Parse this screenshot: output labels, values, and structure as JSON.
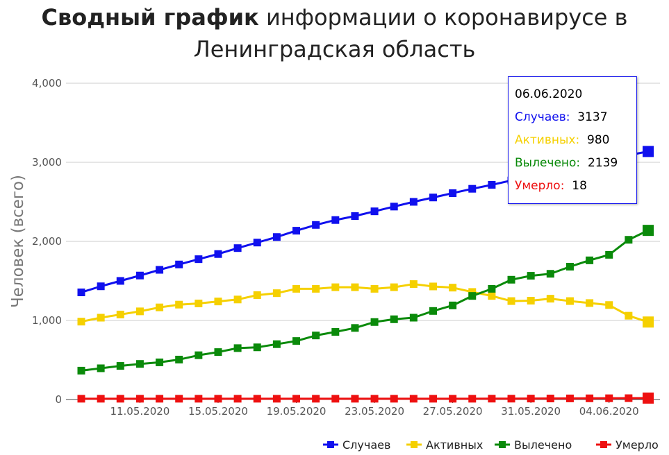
{
  "title": {
    "bold": "Сводный график",
    "rest": "информации о коронавирусе в Ленинградская область"
  },
  "chart_data": {
    "type": "line",
    "ylabel": "Человек (всего)",
    "ylim": [
      0,
      4000
    ],
    "yticks": [
      "0",
      "1,000",
      "2,000",
      "3,000",
      "4,000"
    ],
    "ytick_values": [
      0,
      1000,
      2000,
      3000,
      4000
    ],
    "x": [
      "2020-05-08",
      "2020-05-09",
      "2020-05-10",
      "2020-05-11",
      "2020-05-12",
      "2020-05-13",
      "2020-05-14",
      "2020-05-15",
      "2020-05-16",
      "2020-05-17",
      "2020-05-18",
      "2020-05-19",
      "2020-05-20",
      "2020-05-21",
      "2020-05-22",
      "2020-05-23",
      "2020-05-24",
      "2020-05-25",
      "2020-05-26",
      "2020-05-27",
      "2020-05-28",
      "2020-05-29",
      "2020-05-30",
      "2020-05-31",
      "2020-06-01",
      "2020-06-02",
      "2020-06-03",
      "2020-06-04",
      "2020-06-05",
      "2020-06-06"
    ],
    "xticks": [
      "11.05.2020",
      "15.05.2020",
      "19.05.2020",
      "23.05.2020",
      "27.05.2020",
      "31.05.2020",
      "04.06.2020"
    ],
    "xtick_positions": [
      "2020-05-11",
      "2020-05-15",
      "2020-05-19",
      "2020-05-23",
      "2020-05-27",
      "2020-05-31",
      "2020-06-04"
    ],
    "series": [
      {
        "name": "Случаев",
        "color": "#1010ee",
        "values": [
          1355,
          1432,
          1500,
          1568,
          1640,
          1708,
          1775,
          1840,
          1915,
          1985,
          2055,
          2135,
          2208,
          2270,
          2320,
          2380,
          2440,
          2500,
          2555,
          2610,
          2665,
          2715,
          2770,
          2830,
          2885,
          2940,
          2990,
          3040,
          3090,
          3137
        ]
      },
      {
        "name": "Активных",
        "color": "#f5d000",
        "values": [
          985,
          1035,
          1075,
          1115,
          1165,
          1200,
          1215,
          1240,
          1265,
          1320,
          1345,
          1400,
          1400,
          1420,
          1420,
          1400,
          1420,
          1460,
          1430,
          1415,
          1360,
          1310,
          1245,
          1250,
          1275,
          1245,
          1220,
          1195,
          1060,
          980
        ]
      },
      {
        "name": "Вылечено",
        "color": "#0a8a0a",
        "values": [
          365,
          395,
          425,
          450,
          470,
          505,
          560,
          600,
          650,
          660,
          700,
          740,
          810,
          855,
          905,
          980,
          1015,
          1035,
          1120,
          1190,
          1310,
          1400,
          1515,
          1565,
          1590,
          1680,
          1760,
          1830,
          2020,
          2139
        ]
      },
      {
        "name": "Умерло",
        "color": "#ee1010",
        "values": [
          10,
          10,
          10,
          10,
          10,
          10,
          10,
          10,
          10,
          10,
          10,
          10,
          10,
          10,
          10,
          10,
          10,
          10,
          10,
          10,
          10,
          11,
          11,
          12,
          13,
          14,
          15,
          16,
          17,
          18
        ]
      }
    ],
    "legend_position": "bottom-right",
    "grid": true
  },
  "tooltip": {
    "date": "06.06.2020",
    "rows": [
      {
        "label": "Случаев:",
        "value": "3137",
        "color": "#1010ee"
      },
      {
        "label": "Активных:",
        "value": "980",
        "color": "#f5d000"
      },
      {
        "label": "Вылечено:",
        "value": "2139",
        "color": "#0a8a0a"
      },
      {
        "label": "Умерло:",
        "value": "18",
        "color": "#ee1010"
      }
    ]
  }
}
